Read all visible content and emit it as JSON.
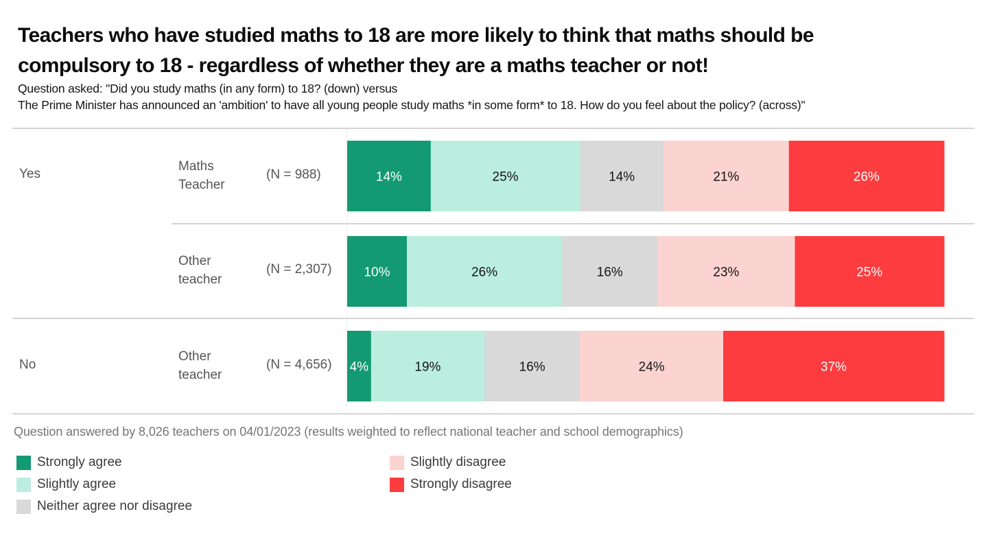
{
  "title_line1": "Teachers who have studied maths to 18 are more likely to think that maths should be",
  "title_line2": "compulsory to 18 - regardless of whether they are a maths teacher or not!",
  "subtitle_line1": "Question asked: \"Did you study maths (in any form) to 18? (down) versus",
  "subtitle_line2": "The Prime Minister has announced an 'ambition' to have all young people study maths *in some form* to 18. How do you feel about the policy? (across)\"",
  "footer": "Question answered by 8,026 teachers on 04/01/2023 (results weighted to reflect national teacher and school demographics)",
  "groups": [
    {
      "label": "Yes"
    },
    {
      "label": "No"
    }
  ],
  "rows": [
    {
      "group": "Yes",
      "label_line1": "Maths",
      "label_line2": "Teacher",
      "n_label": "(N = 988)"
    },
    {
      "group": "Yes",
      "label_line1": "Other",
      "label_line2": "teacher",
      "n_label": "(N = 2,307)"
    },
    {
      "group": "No",
      "label_line1": "Other",
      "label_line2": "teacher",
      "n_label": "(N = 4,656)"
    }
  ],
  "legend": [
    {
      "label": "Strongly agree",
      "color": "#139a72"
    },
    {
      "label": "Slightly agree",
      "color": "#bbeedf"
    },
    {
      "label": "Neither agree nor disagree",
      "color": "#d9d9d9"
    },
    {
      "label": "Slightly disagree",
      "color": "#fbd3d1"
    },
    {
      "label": "Strongly disagree",
      "color": "#fd3c3f"
    }
  ],
  "chart_data": {
    "type": "bar",
    "orientation": "horizontal",
    "stacked": true,
    "normalized": "percent",
    "title": "Teachers who have studied maths to 18 are more likely to think that maths should be compulsory to 18 - regardless of whether they are a maths teacher or not!",
    "categories": [
      "Yes | Maths Teacher (N = 988)",
      "Yes | Other teacher (N = 2,307)",
      "No | Other teacher (N = 4,656)"
    ],
    "series": [
      {
        "name": "Strongly agree",
        "color": "#139a72",
        "label_color": "#ffffff",
        "values": [
          14,
          10,
          4
        ]
      },
      {
        "name": "Slightly agree",
        "color": "#bbeedf",
        "label_color": "#151515",
        "values": [
          25,
          26,
          19
        ]
      },
      {
        "name": "Neither agree nor disagree",
        "color": "#d9d9d9",
        "label_color": "#151515",
        "values": [
          14,
          16,
          16
        ]
      },
      {
        "name": "Slightly disagree",
        "color": "#fbd3d1",
        "label_color": "#151515",
        "values": [
          21,
          23,
          24
        ]
      },
      {
        "name": "Strongly disagree",
        "color": "#fd3c3f",
        "label_color": "#ffffff",
        "values": [
          26,
          25,
          37
        ]
      }
    ],
    "value_format": "{v}%",
    "xlim": [
      0,
      100
    ],
    "xlabel": "",
    "ylabel": "",
    "grid": false,
    "legend_position": "bottom-left"
  }
}
